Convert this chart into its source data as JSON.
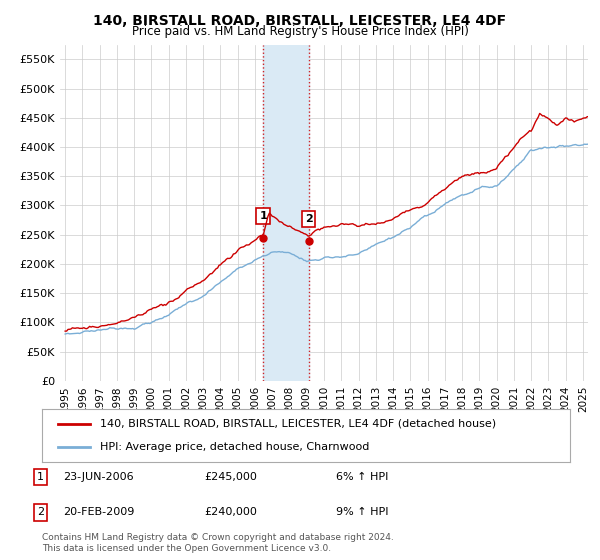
{
  "title": "140, BIRSTALL ROAD, BIRSTALL, LEICESTER, LE4 4DF",
  "subtitle": "Price paid vs. HM Land Registry's House Price Index (HPI)",
  "ylabel_ticks": [
    "£0",
    "£50K",
    "£100K",
    "£150K",
    "£200K",
    "£250K",
    "£300K",
    "£350K",
    "£400K",
    "£450K",
    "£500K",
    "£550K"
  ],
  "ytick_values": [
    0,
    50000,
    100000,
    150000,
    200000,
    250000,
    300000,
    350000,
    400000,
    450000,
    500000,
    550000
  ],
  "ylim": [
    0,
    575000
  ],
  "xlim_start": 1994.7,
  "xlim_end": 2025.3,
  "xtick_labels": [
    "1995",
    "1996",
    "1997",
    "1998",
    "1999",
    "2000",
    "2001",
    "2002",
    "2003",
    "2004",
    "2005",
    "2006",
    "2007",
    "2008",
    "2009",
    "2010",
    "2011",
    "2012",
    "2013",
    "2014",
    "2015",
    "2016",
    "2017",
    "2018",
    "2019",
    "2020",
    "2021",
    "2022",
    "2023",
    "2024",
    "2025"
  ],
  "legend_line1": "140, BIRSTALL ROAD, BIRSTALL, LEICESTER, LE4 4DF (detached house)",
  "legend_line2": "HPI: Average price, detached house, Charnwood",
  "transaction1_date": "23-JUN-2006",
  "transaction1_price": "£245,000",
  "transaction1_hpi": "6% ↑ HPI",
  "transaction1_x": 2006.47,
  "transaction1_y": 245000,
  "transaction2_date": "20-FEB-2009",
  "transaction2_price": "£240,000",
  "transaction2_hpi": "9% ↑ HPI",
  "transaction2_x": 2009.12,
  "transaction2_y": 240000,
  "footer": "Contains HM Land Registry data © Crown copyright and database right 2024.\nThis data is licensed under the Open Government Licence v3.0.",
  "red_color": "#cc0000",
  "blue_color": "#7aaed6",
  "shade_color": "#daeaf5"
}
